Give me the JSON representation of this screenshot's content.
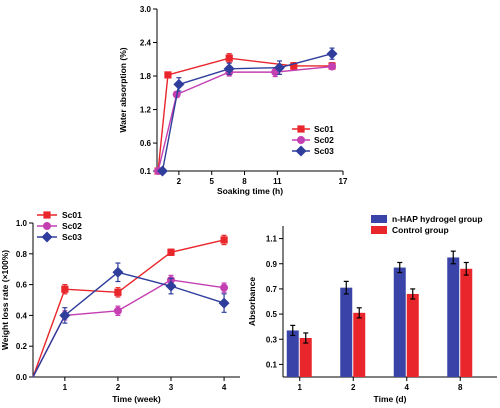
{
  "chart_data": [
    {
      "type": "line",
      "ylabel": "Water absorption (%)",
      "xlabel": "Soaking time (h)",
      "x_ticks": [
        "2",
        "5",
        "8",
        "11",
        "17"
      ],
      "y_ticks": [
        "0.1",
        "0.6",
        "1.2",
        "1.8",
        "2.4",
        "3.0"
      ],
      "xlim": [
        0,
        17
      ],
      "ylim": [
        0.1,
        3.0
      ],
      "legend_position": "bottom-right",
      "series": [
        {
          "name": "Sc01",
          "color": "#e8262b",
          "marker": "square",
          "x": [
            0.1,
            1.0,
            6.6,
            12.5,
            16.0
          ],
          "y": [
            0.1,
            1.82,
            2.12,
            1.98,
            1.98
          ],
          "err": [
            0.0,
            0.05,
            0.08,
            0.06,
            0.06
          ]
        },
        {
          "name": "Sc02",
          "color": "#c43fb2",
          "marker": "circle",
          "x": [
            0.1,
            1.8,
            6.6,
            10.8,
            16.0
          ],
          "y": [
            0.1,
            1.47,
            1.87,
            1.87,
            1.97
          ],
          "err": [
            0.0,
            0.05,
            0.07,
            0.08,
            0.05
          ]
        },
        {
          "name": "Sc03",
          "color": "#2f3e9c",
          "marker": "diamond",
          "x": [
            0.5,
            2.0,
            6.6,
            11.2,
            16.0
          ],
          "y": [
            0.1,
            1.65,
            1.93,
            1.95,
            2.2
          ],
          "err": [
            0.0,
            0.12,
            0.1,
            0.12,
            0.1
          ]
        }
      ]
    },
    {
      "type": "line",
      "ylabel": "Weight loss rate (×100%)",
      "xlabel": "Time (week)",
      "x_ticks": [
        "1",
        "2",
        "3",
        "4"
      ],
      "y_ticks": [
        "0.0",
        "0.2",
        "0.4",
        "0.6",
        "0.8",
        "1.0"
      ],
      "xlim": [
        0.4,
        4.3
      ],
      "ylim": [
        0.0,
        1.0
      ],
      "legend_position": "top-left",
      "series": [
        {
          "name": "Sc01",
          "color": "#e8262b",
          "marker": "square",
          "x": [
            0.4,
            1,
            2,
            3,
            4
          ],
          "y": [
            0.0,
            0.57,
            0.55,
            0.81,
            0.89
          ],
          "err": [
            0.0,
            0.03,
            0.03,
            0.02,
            0.03
          ]
        },
        {
          "name": "Sc02",
          "color": "#c43fb2",
          "marker": "circle",
          "x": [
            0.4,
            1,
            2,
            3,
            4
          ],
          "y": [
            0.0,
            0.4,
            0.43,
            0.63,
            0.58
          ],
          "err": [
            0.0,
            0.03,
            0.03,
            0.03,
            0.03
          ]
        },
        {
          "name": "Sc03",
          "color": "#2f3e9c",
          "marker": "diamond",
          "x": [
            0.4,
            1,
            2,
            3,
            4
          ],
          "y": [
            0.0,
            0.4,
            0.68,
            0.59,
            0.48
          ],
          "err": [
            0.0,
            0.05,
            0.06,
            0.05,
            0.06
          ]
        }
      ]
    },
    {
      "type": "bar",
      "ylabel": "Absorbance",
      "xlabel": "Time (d)",
      "categories": [
        "1",
        "2",
        "4",
        "8"
      ],
      "y_ticks": [
        "0.1",
        "0.3",
        "0.5",
        "0.7",
        "0.9",
        "1.1"
      ],
      "ylim": [
        0.0,
        1.2
      ],
      "legend_position": "top-left",
      "series": [
        {
          "name": "n-HAP hydrogel group",
          "color": "#3a44a8",
          "values": [
            0.37,
            0.71,
            0.87,
            0.95
          ],
          "err": [
            0.04,
            0.05,
            0.04,
            0.05
          ]
        },
        {
          "name": "Control group",
          "color": "#e8262b",
          "values": [
            0.31,
            0.51,
            0.66,
            0.86
          ],
          "err": [
            0.04,
            0.04,
            0.04,
            0.05
          ]
        }
      ]
    }
  ]
}
